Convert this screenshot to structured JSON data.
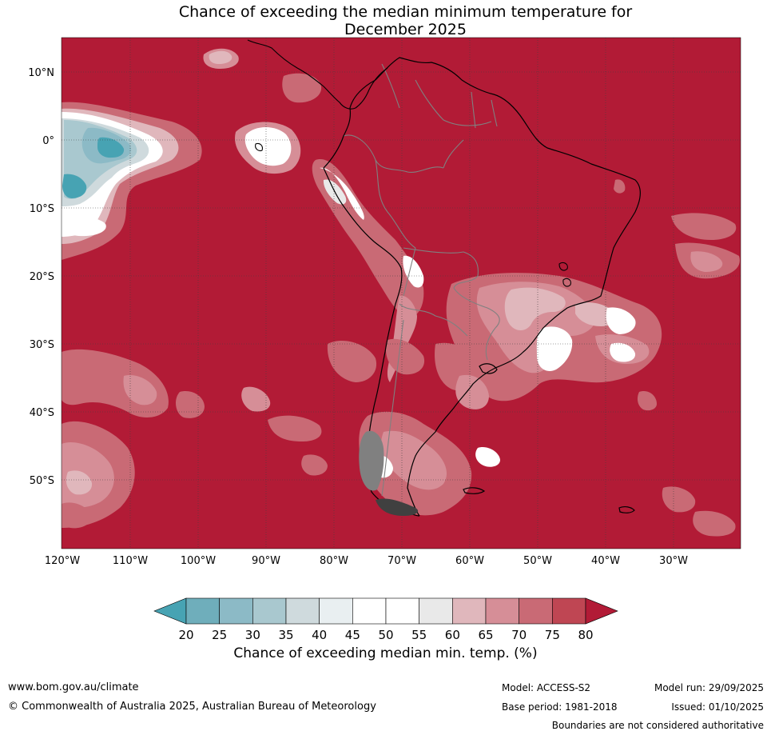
{
  "title_line1": "Chance of exceeding the median minimum temperature for",
  "title_line2": "December 2025",
  "lat_labels": [
    "10°N",
    "0°",
    "10°S",
    "20°S",
    "30°S",
    "40°S",
    "50°S"
  ],
  "lon_labels": [
    "120°W",
    "110°W",
    "100°W",
    "90°W",
    "80°W",
    "70°W",
    "60°W",
    "50°W",
    "40°W",
    "30°W"
  ],
  "colorbar": {
    "title": "Chance of exceeding median min. temp. (%)",
    "ticks": [
      "20",
      "25",
      "30",
      "35",
      "40",
      "45",
      "50",
      "55",
      "60",
      "65",
      "70",
      "75",
      "80"
    ],
    "colors": [
      "#47a3b3",
      "#6faebb",
      "#8cbac6",
      "#a9c8cf",
      "#cfdadd",
      "#e9eff1",
      "#ffffff",
      "#ffffff",
      "#e9e9e9",
      "#e0b7bc",
      "#d68e97",
      "#c96a75",
      "#bf4653",
      "#b21b36"
    ]
  },
  "palette": {
    "background_field": "#b21b36",
    "coast": "#000000",
    "borders": "#808080",
    "grid": "#404040"
  },
  "footer": {
    "website": "www.bom.gov.au/climate",
    "copyright": "© Commonwealth of Australia 2025, Australian Bureau of Meteorology",
    "model": "Model: ACCESS-S2",
    "base_period": "Base period: 1981-2018",
    "model_run": "Model run: 29/09/2025",
    "issued": "Issued: 01/10/2025",
    "disclaimer": "Boundaries are not considered authoritative"
  }
}
